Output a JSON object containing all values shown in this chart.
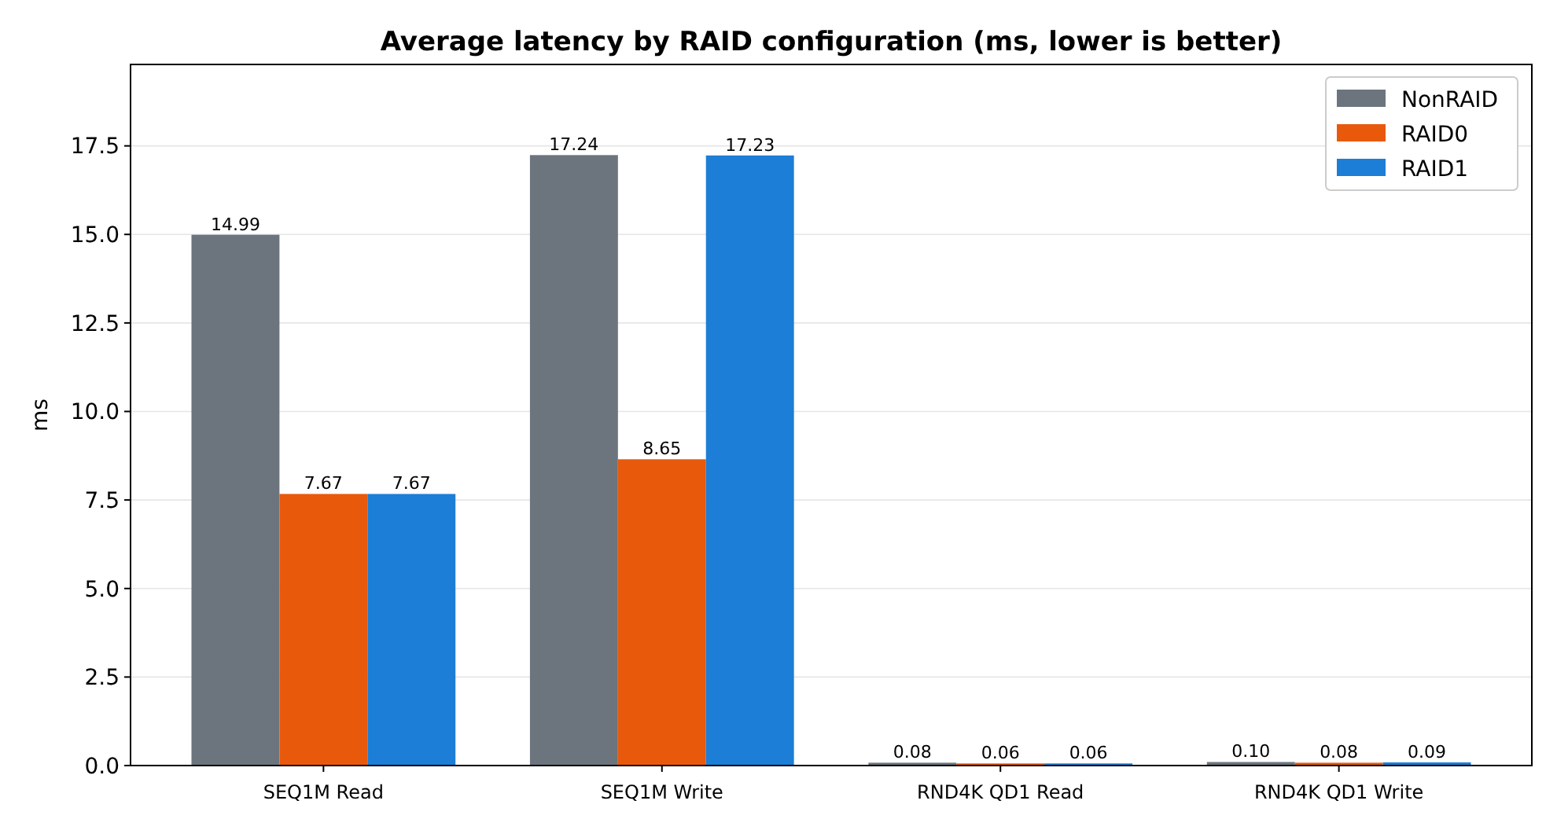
{
  "chart_data": {
    "type": "bar",
    "title": "Average latency by RAID configuration (ms, lower is better)",
    "ylabel": "ms",
    "categories": [
      "SEQ1M Read",
      "SEQ1M Write",
      "RND4K QD1 Read",
      "RND4K QD1 Write"
    ],
    "series": [
      {
        "name": "NonRAID",
        "color": "#6c757d",
        "values": [
          14.99,
          17.24,
          0.08,
          0.1
        ],
        "value_labels": [
          "14.99",
          "17.24",
          "0.08",
          "0.10"
        ]
      },
      {
        "name": "RAID0",
        "color": "#e8590c",
        "values": [
          7.67,
          8.65,
          0.06,
          0.08
        ],
        "value_labels": [
          "7.67",
          "8.65",
          "0.06",
          "0.08"
        ]
      },
      {
        "name": "RAID1",
        "color": "#1c7ed6",
        "values": [
          7.67,
          17.23,
          0.06,
          0.09
        ],
        "value_labels": [
          "7.67",
          "17.23",
          "0.06",
          "0.09"
        ]
      }
    ],
    "ylim": [
      0,
      19.8
    ],
    "yticks": [
      {
        "value": 0,
        "label": "0.0"
      },
      {
        "value": 2.5,
        "label": "2.5"
      },
      {
        "value": 5,
        "label": "5.0"
      },
      {
        "value": 7.5,
        "label": "7.5"
      },
      {
        "value": 10,
        "label": "10.0"
      },
      {
        "value": 12.5,
        "label": "12.5"
      },
      {
        "value": 15,
        "label": "15.0"
      },
      {
        "value": 17.5,
        "label": "17.5"
      }
    ],
    "grid": "y",
    "legend": "top right"
  }
}
